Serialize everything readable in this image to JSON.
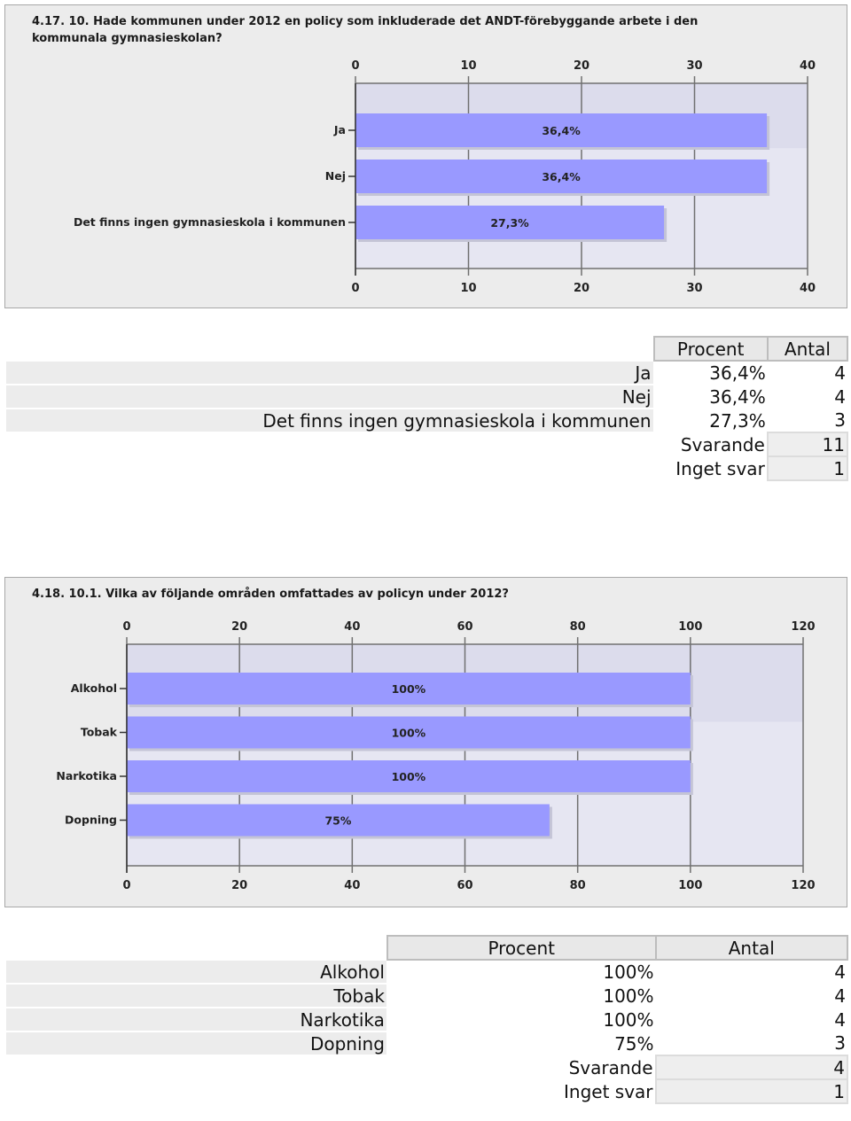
{
  "charts": [
    {
      "title_line1": "4.17. 10. Hade kommunen under 2012 en policy som inkluderade det ANDT-förebyggande arbete i den",
      "title_line2": "kommunala gymnasieskolan?"
    },
    {
      "title_line1": "4.18. 10.1. Vilka av följande områden omfattades av policyn under 2012?",
      "title_line2": ""
    }
  ],
  "chart_data": [
    {
      "type": "bar",
      "orientation": "horizontal",
      "title": "4.17. 10. Hade kommunen under 2012 en policy som inkluderade det ANDT-förebyggande arbete i den kommunala gymnasieskolan?",
      "categories": [
        "Ja",
        "Nej",
        "Det finns ingen gymnasieskola i kommunen"
      ],
      "values": [
        36.4,
        36.4,
        27.3
      ],
      "data_labels": [
        "36,4%",
        "36,4%",
        "27,3%"
      ],
      "xlim": [
        0,
        40
      ],
      "xticks": [
        0,
        10,
        20,
        30,
        40
      ],
      "grid": true,
      "bar_color": "#9999ff",
      "plot_bg": "#dcdcec"
    },
    {
      "type": "bar",
      "orientation": "horizontal",
      "title": "4.18. 10.1. Vilka av följande områden omfattades av policyn under 2012?",
      "categories": [
        "Alkohol",
        "Tobak",
        "Narkotika",
        "Dopning"
      ],
      "values": [
        100,
        100,
        100,
        75
      ],
      "data_labels": [
        "100%",
        "100%",
        "100%",
        "75%"
      ],
      "xlim": [
        0,
        120
      ],
      "xticks": [
        0,
        20,
        40,
        60,
        80,
        100,
        120
      ],
      "grid": true,
      "bar_color": "#9999ff",
      "plot_bg": "#dcdcec"
    }
  ],
  "tables": [
    {
      "header_procent": "Procent",
      "header_antal": "Antal",
      "rows": [
        {
          "label": "Ja",
          "procent": "36,4%",
          "antal": "4"
        },
        {
          "label": "Nej",
          "procent": "36,4%",
          "antal": "4"
        },
        {
          "label": "Det finns ingen gymnasieskola i kommunen",
          "procent": "27,3%",
          "antal": "3"
        }
      ],
      "svarande_label": "Svarande",
      "svarande_value": "11",
      "inget_svar_label": "Inget svar",
      "inget_svar_value": "1"
    },
    {
      "header_procent": "Procent",
      "header_antal": "Antal",
      "rows": [
        {
          "label": "Alkohol",
          "procent": "100%",
          "antal": "4"
        },
        {
          "label": "Tobak",
          "procent": "100%",
          "antal": "4"
        },
        {
          "label": "Narkotika",
          "procent": "100%",
          "antal": "4"
        },
        {
          "label": "Dopning",
          "procent": "75%",
          "antal": "3"
        }
      ],
      "svarande_label": "Svarande",
      "svarande_value": "4",
      "inget_svar_label": "Inget svar",
      "inget_svar_value": "1"
    }
  ]
}
